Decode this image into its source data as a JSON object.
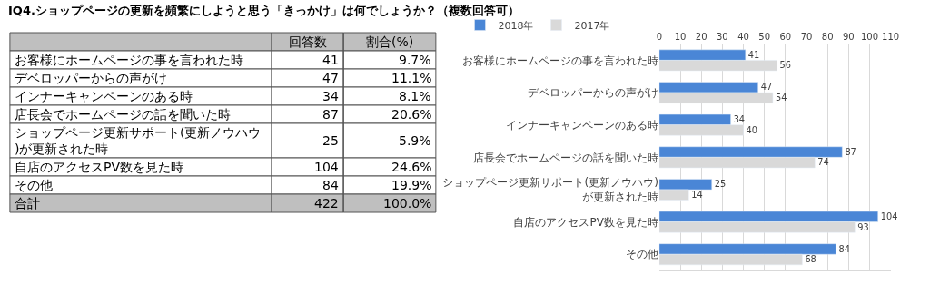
{
  "chart_data": [
    {
      "type": "other",
      "title": "IQ4.ショップページの更新を頻繁にしようと思う「きっかけ」は何でしょうか？（複数回答可）",
      "categories": [
        "お客様にホームページの事を言われた時",
        "デベロッパーからの声がけ",
        "インナーキャンペーンのある時",
        "店長会でホームページの話を聞いた時",
        "ショップページ更新サポート(更新ノウハウ)が更新された時",
        "自店のアクセスPV数を見た時",
        "その他",
        "合計"
      ],
      "series": [
        {
          "name": "回答数",
          "colors": [
            "#ffffff",
            "#ffffff",
            "#ffffff",
            "#ffffff",
            "#ffffff",
            "#ffffff",
            "#ffffff",
            "#bfbfbf"
          ],
          "values": [
            41,
            47,
            34,
            87,
            25,
            104,
            84,
            422
          ]
        },
        {
          "name": "割合(%)",
          "colors": [
            "#ffffff",
            "#ffffff",
            "#ffffff",
            "#ffffff",
            "#ffffff",
            "#ffffff",
            "#ffffff",
            "#bfbfbf"
          ],
          "values": [
            9.7,
            11.1,
            8.1,
            20.6,
            5.9,
            24.6,
            19.9,
            100.0
          ],
          "value_labels": [
            "9.7%",
            "11.1%",
            "8.1%",
            "20.6%",
            "5.9%",
            "24.6%",
            "19.9%",
            "100.0%"
          ]
        }
      ],
      "data_labels": true
    },
    {
      "type": "bar",
      "orientation": "horizontal",
      "categories": [
        "お客様にホームページの事を言われた時",
        "デベロッパーからの声がけ",
        "インナーキャンペーンのある時",
        "店長会でホームページの話を聞いた時",
        "ショップページ更新サポート(更新ノウハウ)\nが更新された時",
        "自店のアクセスPV数を見た時",
        "その他"
      ],
      "series": [
        {
          "name": "2018年",
          "color": "#4a86d6",
          "values": [
            41,
            47,
            34,
            87,
            25,
            104,
            84
          ]
        },
        {
          "name": "2017年",
          "color": "#d9d9d9",
          "values": [
            56,
            54,
            40,
            74,
            14,
            93,
            68
          ]
        }
      ],
      "xlim": [
        0,
        110
      ],
      "xticks": [
        0,
        10,
        20,
        30,
        40,
        50,
        60,
        70,
        80,
        90,
        100,
        110
      ],
      "grid": "x",
      "legend": "top left",
      "data_labels": true
    }
  ]
}
